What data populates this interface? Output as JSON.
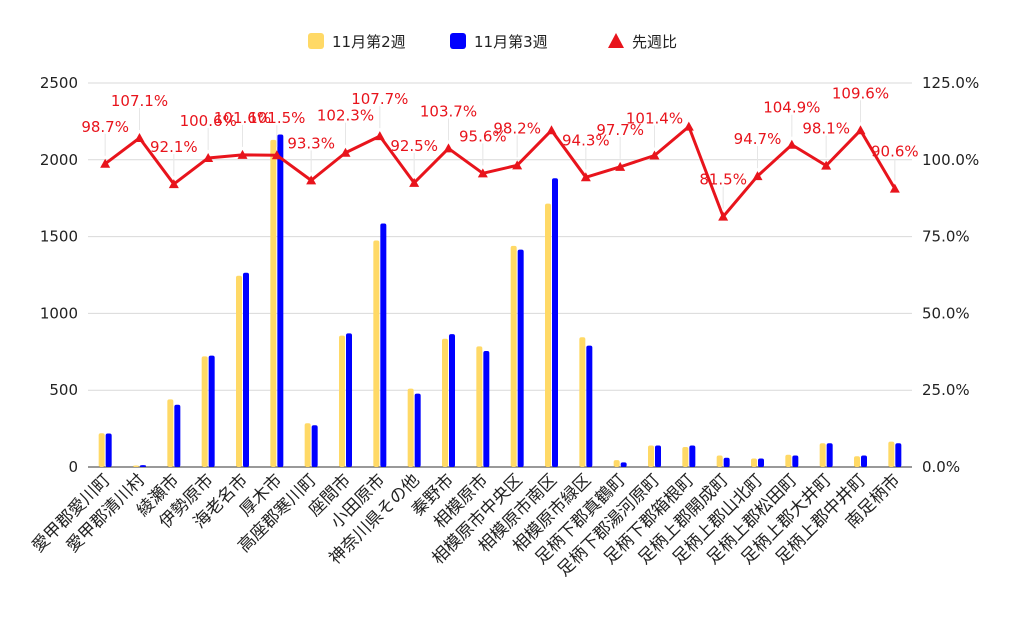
{
  "chart_data": {
    "type": "bar+line",
    "title": "",
    "categories": [
      "愛甲郡愛川町",
      "愛甲郡清川村",
      "綾瀬市",
      "伊勢原市",
      "海老名市",
      "厚木市",
      "高座郡寒川町",
      "座間市",
      "小田原市",
      "神奈川県その他",
      "秦野市",
      "相模原市",
      "相模原市中央区",
      "相模原市南区",
      "相模原市緑区",
      "足柄下郡真鶴町",
      "足柄下郡湯河原町",
      "足柄下郡箱根町",
      "足柄上郡開成町",
      "足柄上郡山北町",
      "足柄上郡松田町",
      "足柄上郡大井町",
      "足柄上郡中井町",
      "南足柄市"
    ],
    "series": [
      {
        "name": "11月第2週",
        "type": "bar",
        "axis": "left",
        "color": "#ffd966",
        "values": [
          220,
          10,
          440,
          720,
          1245,
          2130,
          285,
          855,
          1475,
          510,
          835,
          785,
          1440,
          1715,
          845,
          45,
          140,
          130,
          75,
          55,
          80,
          155,
          70,
          165
        ]
      },
      {
        "name": "11月第3週",
        "type": "bar",
        "axis": "left",
        "color": "#0000ff",
        "values": [
          218,
          12,
          405,
          725,
          1265,
          2165,
          272,
          870,
          1585,
          478,
          865,
          755,
          1415,
          1880,
          790,
          30,
          140,
          140,
          60,
          55,
          75,
          155,
          75,
          155
        ]
      },
      {
        "name": "先週比",
        "type": "line",
        "axis": "right",
        "color": "#e8141c",
        "values": [
          98.7,
          107.1,
          92.1,
          100.6,
          101.6,
          101.5,
          93.3,
          102.3,
          107.7,
          92.5,
          103.7,
          95.6,
          98.2,
          109.6,
          94.3,
          97.7,
          101.4,
          110.8,
          81.5,
          94.7,
          104.9,
          98.1,
          109.6,
          90.6
        ],
        "labels": [
          "98.7%",
          "107.1%",
          "92.1%",
          "100.6%",
          "101.6%",
          "101.5%",
          "93.3%",
          "102.3%",
          "107.7%",
          "92.5%",
          "103.7%",
          "95.6%",
          "98.2%",
          "",
          "94.3%",
          "97.7%",
          "101.4%",
          "",
          "81.5%",
          "94.7%",
          "104.9%",
          "98.1%",
          "109.6%",
          "90.6%"
        ]
      }
    ],
    "yleft": {
      "min": 0,
      "max": 2500,
      "ticks": [
        0,
        500,
        1000,
        1500,
        2000,
        2500
      ]
    },
    "yright": {
      "min": 0,
      "max": 125,
      "ticks": [
        "0.0%",
        "25.0%",
        "50.0%",
        "75.0%",
        "100.0%",
        "125.0%"
      ]
    },
    "grid": true,
    "legend": "top-center"
  }
}
